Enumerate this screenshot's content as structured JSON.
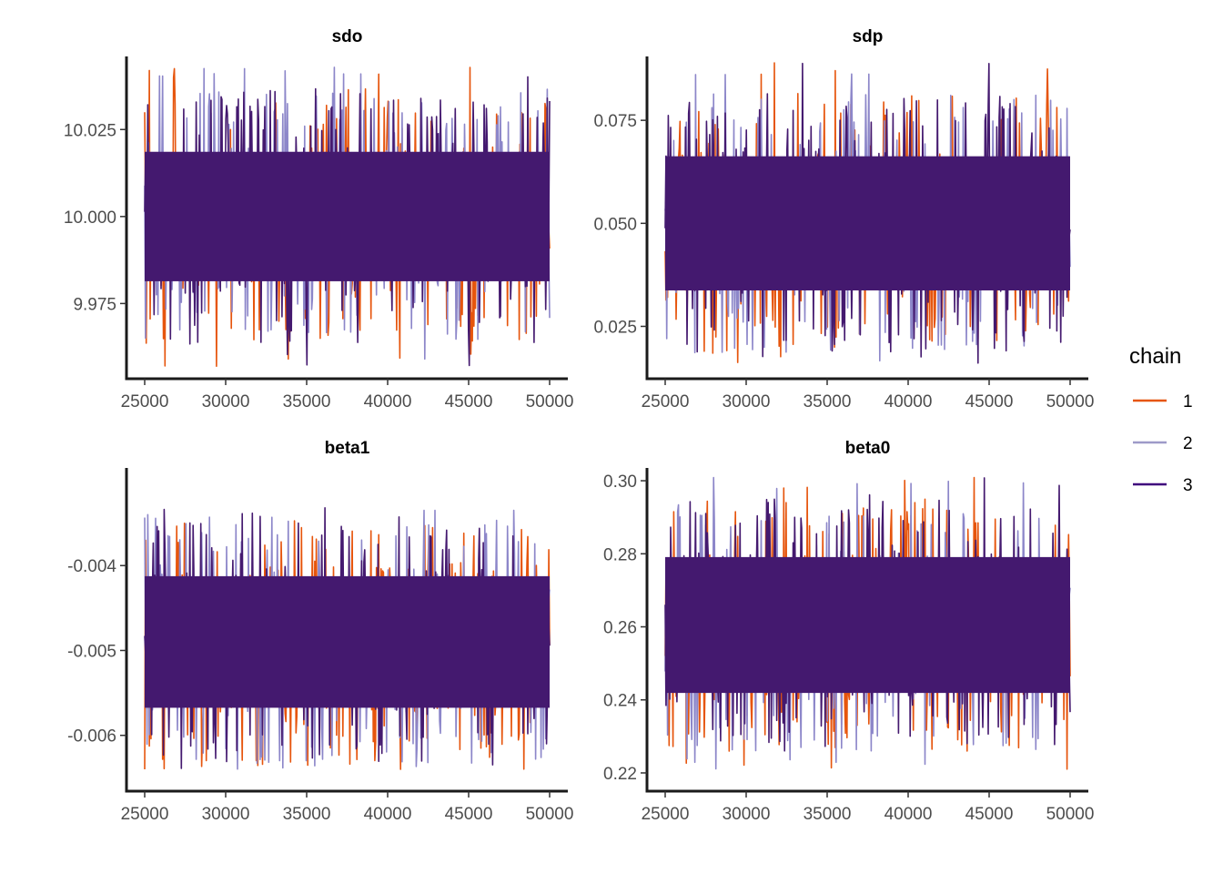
{
  "chart_data": {
    "type": "line",
    "facets": [
      {
        "title": "sdo",
        "x_range": [
          25000,
          50000
        ],
        "y_range": [
          9.956,
          10.046
        ],
        "x_ticks": [
          {
            "value": 25000,
            "label": "25000"
          },
          {
            "value": 30000,
            "label": "30000"
          },
          {
            "value": 35000,
            "label": "35000"
          },
          {
            "value": 40000,
            "label": "40000"
          },
          {
            "value": 45000,
            "label": "45000"
          },
          {
            "value": 50000,
            "label": "50000"
          }
        ],
        "y_ticks": [
          {
            "value": 9.975,
            "label": "9.975"
          },
          {
            "value": 10.0,
            "label": "10.000"
          },
          {
            "value": 10.025,
            "label": "10.025"
          }
        ],
        "trace": {
          "center": 10.0,
          "band": 0.012,
          "spread": 0.035,
          "max_spike": 10.043,
          "min_spike": 9.957
        }
      },
      {
        "title": "sdp",
        "x_range": [
          25000,
          50000
        ],
        "y_range": [
          0.0145,
          0.0905
        ],
        "x_ticks": [
          {
            "value": 25000,
            "label": "25000"
          },
          {
            "value": 30000,
            "label": "30000"
          },
          {
            "value": 35000,
            "label": "35000"
          },
          {
            "value": 40000,
            "label": "40000"
          },
          {
            "value": 45000,
            "label": "45000"
          },
          {
            "value": 50000,
            "label": "50000"
          }
        ],
        "y_ticks": [
          {
            "value": 0.025,
            "label": "0.025"
          },
          {
            "value": 0.05,
            "label": "0.050"
          },
          {
            "value": 0.075,
            "label": "0.075"
          }
        ],
        "trace": {
          "center": 0.05,
          "band": 0.0105,
          "spread": 0.03,
          "max_spike": 0.089,
          "min_spike": 0.016
        }
      },
      {
        "title": "beta1",
        "x_range": [
          25000,
          50000
        ],
        "y_range": [
          -0.00655,
          -0.00285
        ],
        "x_ticks": [
          {
            "value": 25000,
            "label": "25000"
          },
          {
            "value": 30000,
            "label": "30000"
          },
          {
            "value": 35000,
            "label": "35000"
          },
          {
            "value": 40000,
            "label": "40000"
          },
          {
            "value": 45000,
            "label": "45000"
          },
          {
            "value": 50000,
            "label": "50000"
          }
        ],
        "y_ticks": [
          {
            "value": -0.006,
            "label": "-0.006"
          },
          {
            "value": -0.005,
            "label": "-0.005"
          },
          {
            "value": -0.004,
            "label": "-0.004"
          }
        ],
        "trace": {
          "center": -0.0049,
          "band": 0.0005,
          "spread": 0.0014,
          "max_spike": -0.0033,
          "min_spike": -0.0064
        }
      },
      {
        "title": "beta0",
        "x_range": [
          25000,
          50000
        ],
        "y_range": [
          0.2175,
          0.3035
        ],
        "x_ticks": [
          {
            "value": 25000,
            "label": "25000"
          },
          {
            "value": 30000,
            "label": "30000"
          },
          {
            "value": 35000,
            "label": "35000"
          },
          {
            "value": 40000,
            "label": "40000"
          },
          {
            "value": 45000,
            "label": "45000"
          },
          {
            "value": 50000,
            "label": "50000"
          }
        ],
        "y_ticks": [
          {
            "value": 0.22,
            "label": "0.22"
          },
          {
            "value": 0.24,
            "label": "0.24"
          },
          {
            "value": 0.26,
            "label": "0.26"
          },
          {
            "value": 0.28,
            "label": "0.28"
          },
          {
            "value": 0.3,
            "label": "0.30"
          }
        ],
        "trace": {
          "center": 0.2605,
          "band": 0.012,
          "spread": 0.033,
          "max_spike": 0.301,
          "min_spike": 0.221
        }
      }
    ],
    "legend": {
      "title": "chain",
      "placement": "right",
      "entries": [
        {
          "label": "1",
          "color": "#e6550d"
        },
        {
          "label": "2",
          "color": "#9e9ac8"
        },
        {
          "label": "3",
          "color": "#3f007d"
        }
      ]
    },
    "series_colors": [
      "#e6550d",
      "#8c86c9",
      "#44196f"
    ],
    "grid": false
  }
}
